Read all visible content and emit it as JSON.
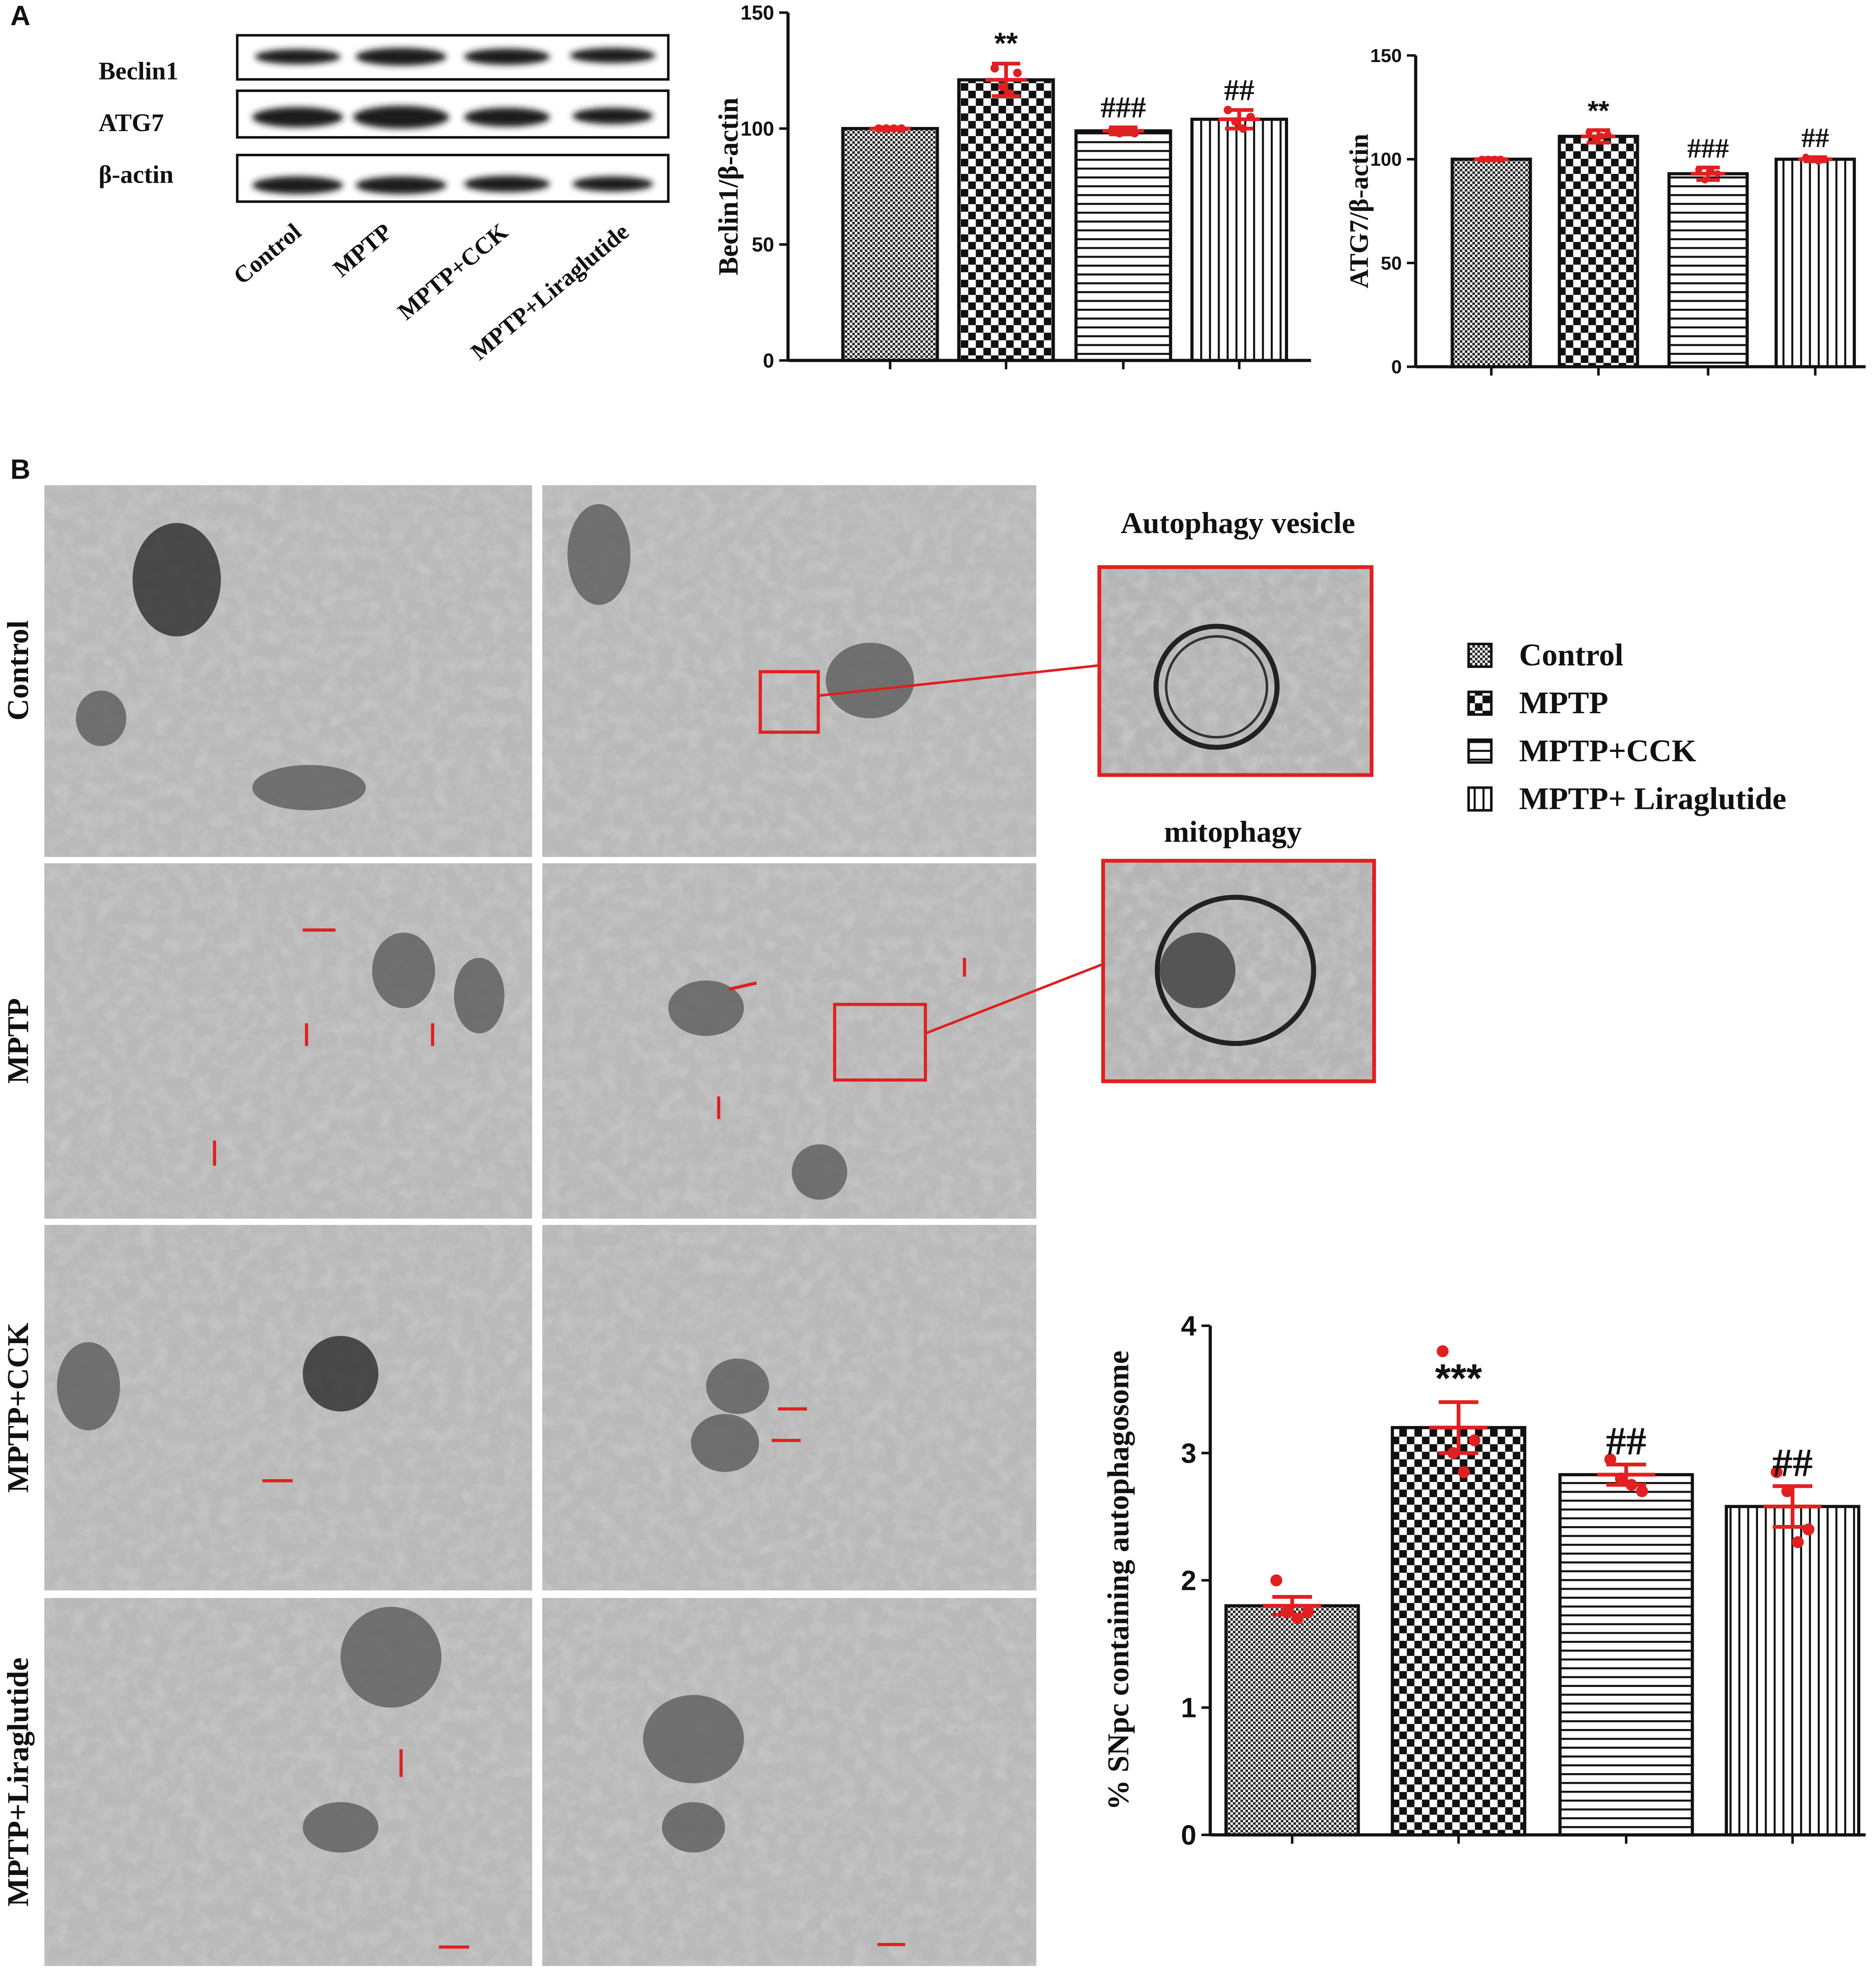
{
  "figure": {
    "panel_labels": [
      "A",
      "B"
    ],
    "blot": {
      "rows": [
        "Beclin1",
        "ATG7",
        "β-actin"
      ],
      "lanes": [
        "Control",
        "MPTP",
        "MPTP+CCK",
        "MPTP+Liraglutide"
      ]
    },
    "em": {
      "rows": [
        "Control",
        "MPTP",
        "MPTP+CCK",
        "MPTP+Liraglutide"
      ],
      "insets": [
        "Autophagy vesicle",
        "mitophagy"
      ]
    },
    "legend": {
      "names": [
        "Control",
        "MPTP",
        "MPTP+CCK",
        "MPTP+ Liraglutide"
      ],
      "patterns": [
        "dots",
        "checker",
        "hlines",
        "vlines"
      ]
    }
  },
  "chart_data": [
    {
      "type": "bar",
      "y_label": "Beclin1/β-actin",
      "categories": [
        null,
        null,
        null,
        null
      ],
      "values": [
        100,
        121,
        99,
        104
      ],
      "errors": [
        0.5,
        7,
        1.5,
        4
      ],
      "points": [
        [
          100,
          100,
          100,
          100
        ],
        [
          126,
          118,
          115,
          124
        ],
        [
          99,
          98,
          99,
          98
        ],
        [
          108,
          103,
          100,
          105
        ]
      ],
      "annotations": [
        null,
        "**",
        "###",
        "##"
      ],
      "patterns": [
        "dots",
        "checker",
        "hlines",
        "vlines"
      ],
      "color": "#e02020",
      "ylim": [
        0,
        150
      ],
      "yticks": [
        0,
        50,
        100,
        150
      ]
    },
    {
      "type": "bar",
      "y_label": "ATG7/β-actin",
      "categories": [
        null,
        null,
        null,
        null
      ],
      "values": [
        100,
        111,
        93,
        100
      ],
      "errors": [
        0.5,
        3,
        3,
        1
      ],
      "points": [
        [
          100,
          100,
          100,
          100
        ],
        [
          113,
          109,
          111,
          112
        ],
        [
          95,
          90,
          94,
          93
        ],
        [
          101,
          100,
          99,
          100
        ]
      ],
      "annotations": [
        null,
        "**",
        "###",
        "##"
      ],
      "patterns": [
        "dots",
        "checker",
        "hlines",
        "vlines"
      ],
      "color": "#e02020",
      "ylim": [
        0,
        150
      ],
      "yticks": [
        0,
        50,
        100,
        150
      ]
    },
    {
      "type": "bar",
      "y_label": "% SNpc containing autophagosome",
      "categories": [
        null,
        null,
        null,
        null
      ],
      "values": [
        1.8,
        3.2,
        2.83,
        2.58
      ],
      "errors": [
        0.07,
        0.2,
        0.08,
        0.16
      ],
      "points": [
        [
          2.0,
          1.75,
          1.7,
          1.75
        ],
        [
          3.8,
          3.0,
          2.85,
          3.1
        ],
        [
          2.95,
          2.8,
          2.75,
          2.7
        ],
        [
          2.85,
          2.7,
          2.3,
          2.4
        ]
      ],
      "annotations": [
        null,
        "***",
        "##",
        "##"
      ],
      "patterns": [
        "dots",
        "checker",
        "hlines",
        "vlines"
      ],
      "color": "#e02020",
      "ylim": [
        0,
        4
      ],
      "yticks": [
        0,
        1,
        2,
        3,
        4
      ]
    }
  ]
}
